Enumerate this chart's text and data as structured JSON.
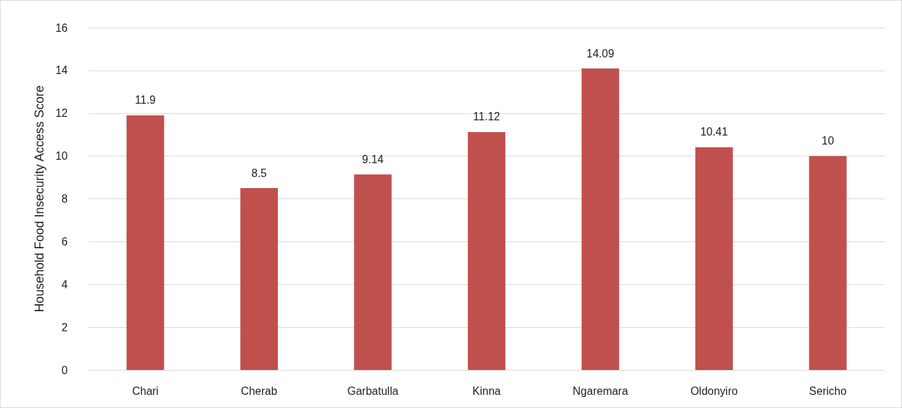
{
  "chart_data": {
    "type": "bar",
    "ylabel": "Household Food Insecurity Access Score",
    "categories": [
      "Chari",
      "Cherab",
      "Garbatulla",
      "Kinna",
      "Ngaremara",
      "Oldonyiro",
      "Sericho"
    ],
    "values": [
      11.9,
      8.5,
      9.14,
      11.12,
      14.09,
      10.41,
      10
    ],
    "color": "#c0504d",
    "data_labels": true,
    "ylim": [
      0,
      16
    ],
    "yticks": [
      0,
      2,
      4,
      6,
      8,
      10,
      12,
      14,
      16
    ],
    "grid": true
  }
}
